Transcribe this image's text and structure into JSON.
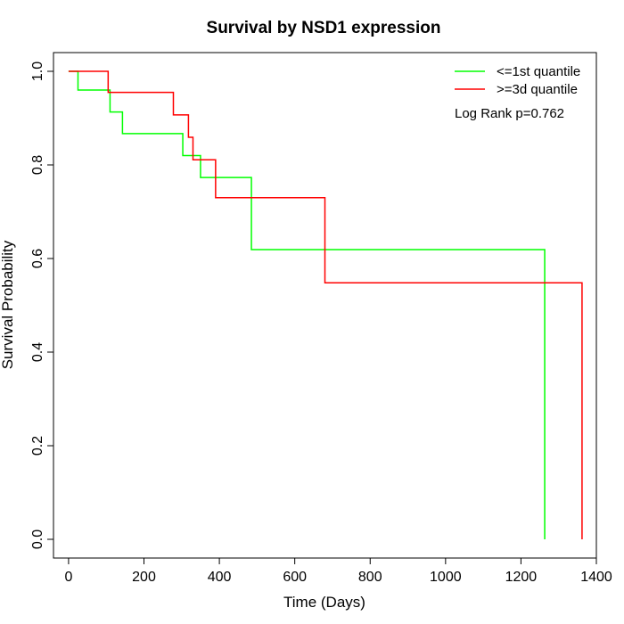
{
  "chart_data": {
    "type": "line",
    "title": "Survival by NSD1 expression",
    "xlabel": "Time (Days)",
    "ylabel": "Survival Probability",
    "xlim": [
      -40,
      1400
    ],
    "ylim": [
      -0.04,
      1.04
    ],
    "xticks": [
      0,
      200,
      400,
      600,
      800,
      1000,
      1200,
      1400
    ],
    "yticks": [
      0.0,
      0.2,
      0.4,
      0.6,
      0.8,
      1.0
    ],
    "xtick_labels": [
      "0",
      "200",
      "400",
      "600",
      "800",
      "1000",
      "1200",
      "1400"
    ],
    "ytick_labels": [
      "0.0",
      "0.2",
      "0.4",
      "0.6",
      "0.8",
      "1.0"
    ],
    "grid": false,
    "legend_position": "top-right",
    "annotation": "Log Rank p=0.762",
    "series": [
      {
        "name": "<=1st quantile",
        "color": "#00ff00",
        "step": true,
        "x": [
          0,
          25,
          110,
          143,
          303,
          350,
          485,
          1263,
          1263
        ],
        "y": [
          1.0,
          0.96,
          0.913,
          0.867,
          0.82,
          0.773,
          0.619,
          0.619,
          0.0
        ]
      },
      {
        "name": ">=3d quantile",
        "color": "#ff0000",
        "step": true,
        "x": [
          0,
          105,
          278,
          318,
          330,
          390,
          680,
          1362,
          1362
        ],
        "y": [
          1.0,
          0.955,
          0.907,
          0.859,
          0.811,
          0.73,
          0.548,
          0.548,
          0.0
        ]
      }
    ]
  }
}
